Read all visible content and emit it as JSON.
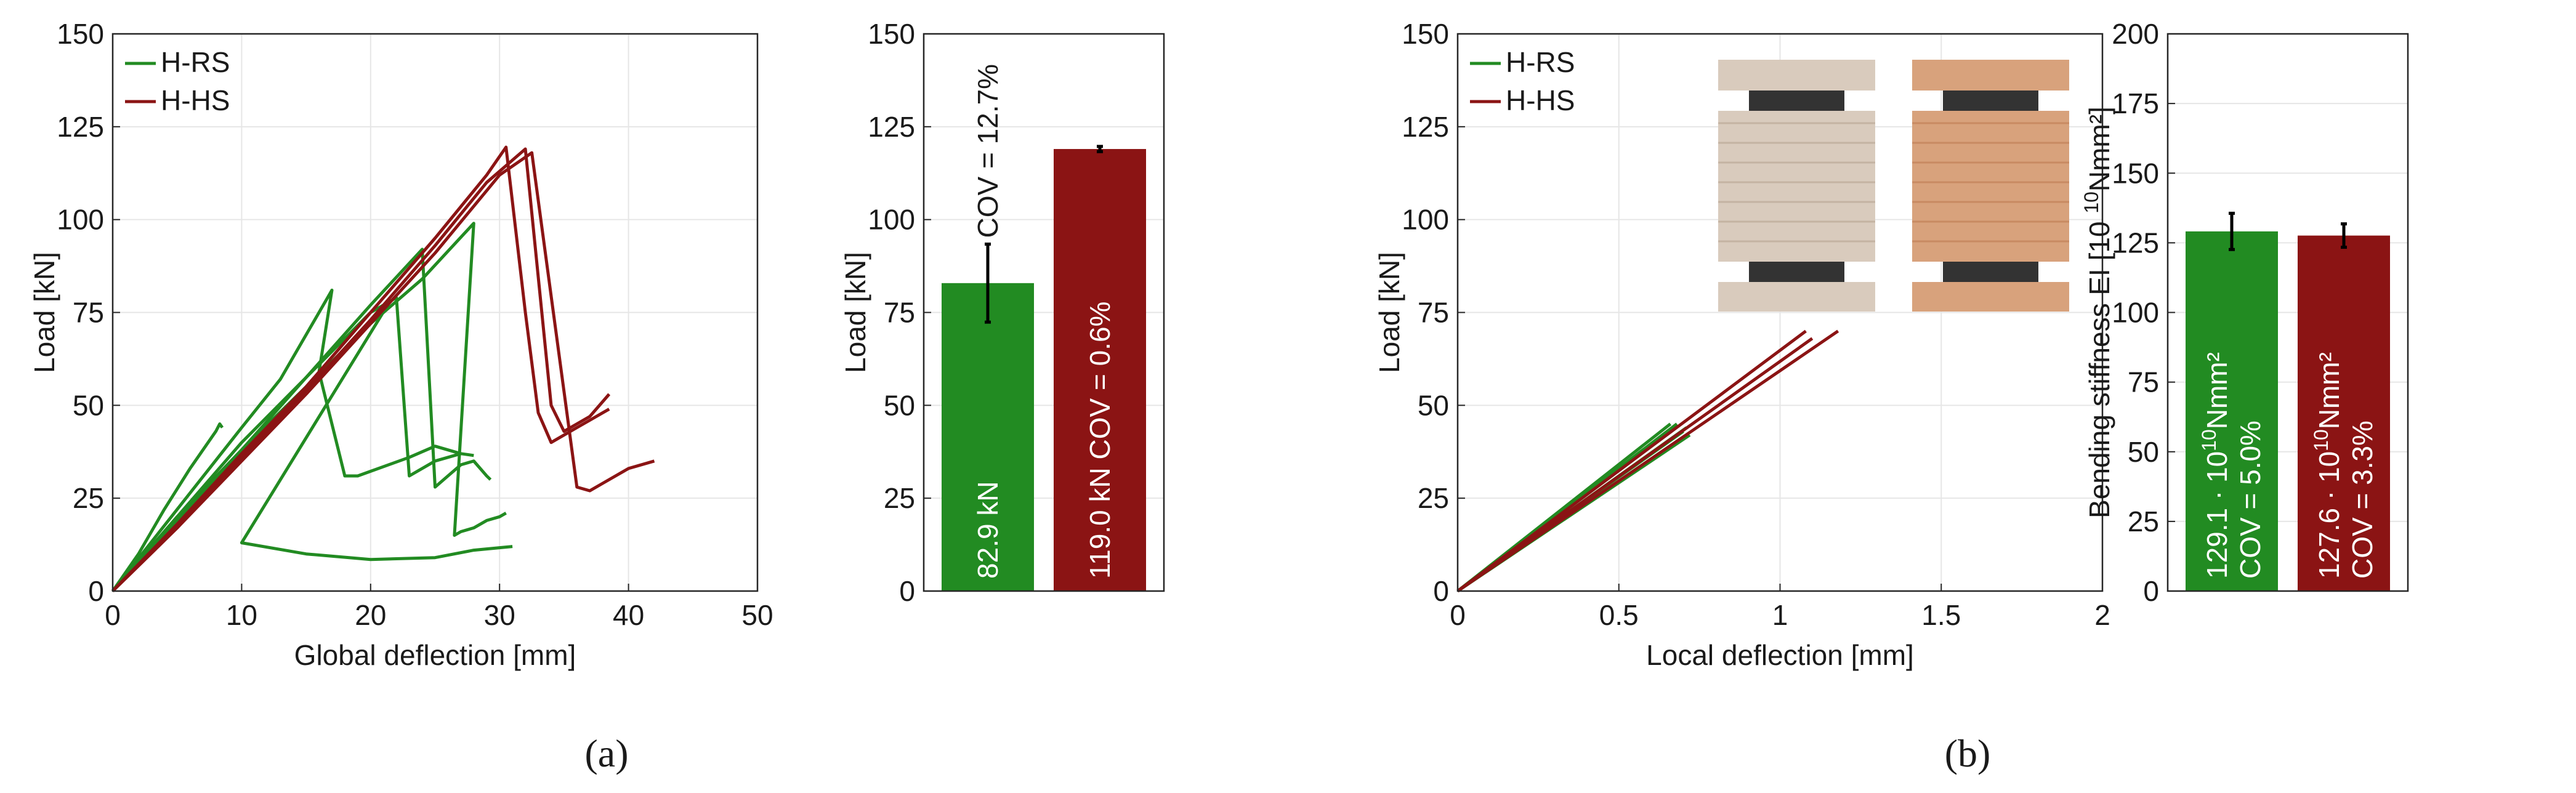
{
  "colors": {
    "green": "#228B22",
    "red": "#8B1414",
    "grid": "#e6e6e6",
    "axis": "#262626"
  },
  "panels": [
    {
      "label": "a",
      "label_text": "(a)"
    },
    {
      "label": "b",
      "label_text": "(b)"
    }
  ],
  "chart_data": [
    {
      "id": "a1",
      "type": "line",
      "xlabel": "Global deflection [mm]",
      "ylabel": "Load [kN]",
      "xlim": [
        0,
        50
      ],
      "ylim": [
        0,
        150
      ],
      "xticks": [
        0,
        10,
        20,
        30,
        40,
        50
      ],
      "yticks": [
        0,
        25,
        50,
        75,
        100,
        125,
        150
      ],
      "grid": true,
      "legend": {
        "placement": "top-left",
        "entries": [
          "H-RS",
          "H-HS"
        ]
      },
      "series": [
        {
          "name": "H-RS",
          "color": "green",
          "curves": [
            [
              [
                0,
                0
              ],
              [
                2,
                10
              ],
              [
                4,
                22
              ],
              [
                6,
                33
              ],
              [
                8,
                43
              ],
              [
                8.3,
                45
              ],
              [
                8.5,
                44
              ]
            ],
            [
              [
                0,
                0
              ],
              [
                5,
                22
              ],
              [
                10,
                44
              ],
              [
                13,
                57
              ],
              [
                17,
                81
              ],
              [
                16,
                59
              ],
              [
                18,
                31
              ],
              [
                19,
                31
              ],
              [
                23,
                36
              ],
              [
                25,
                39
              ],
              [
                27,
                37
              ]
            ],
            [
              [
                0,
                0
              ],
              [
                5,
                20
              ],
              [
                10,
                38
              ],
              [
                15,
                55
              ],
              [
                20,
                72
              ],
              [
                21.5,
                78
              ],
              [
                10,
                13
              ],
              [
                15,
                10
              ],
              [
                20,
                8.5
              ],
              [
                25,
                9
              ],
              [
                28,
                11
              ],
              [
                31,
                12
              ]
            ],
            [
              [
                0,
                0
              ],
              [
                10,
                40
              ],
              [
                20,
                75
              ],
              [
                22,
                79
              ],
              [
                23,
                31
              ],
              [
                25,
                35
              ],
              [
                27,
                37
              ],
              [
                28,
                36.5
              ]
            ],
            [
              [
                0,
                0
              ],
              [
                10,
                38
              ],
              [
                20,
                77
              ],
              [
                24,
                92
              ],
              [
                25,
                28
              ],
              [
                26,
                31
              ],
              [
                27,
                34
              ],
              [
                28,
                35
              ],
              [
                29,
                31
              ],
              [
                29.3,
                30
              ]
            ],
            [
              [
                0,
                0
              ],
              [
                10,
                37
              ],
              [
                20,
                72
              ],
              [
                24,
                84
              ],
              [
                28,
                99
              ],
              [
                26.5,
                15
              ],
              [
                27,
                16
              ],
              [
                28,
                17
              ],
              [
                29,
                19
              ],
              [
                30,
                20
              ],
              [
                30.5,
                21
              ]
            ]
          ]
        },
        {
          "name": "H-HS",
          "color": "red",
          "curves": [
            [
              [
                0,
                0
              ],
              [
                5,
                18
              ],
              [
                10,
                37
              ],
              [
                15,
                55
              ],
              [
                20,
                75
              ],
              [
                25,
                95
              ],
              [
                29,
                112
              ],
              [
                30.5,
                119.5
              ],
              [
                32,
                75
              ],
              [
                33,
                48
              ],
              [
                34,
                40
              ],
              [
                35,
                42
              ],
              [
                36,
                44
              ],
              [
                37,
                46
              ],
              [
                38,
                48
              ],
              [
                38.5,
                49
              ]
            ],
            [
              [
                0,
                0
              ],
              [
                5,
                17
              ],
              [
                10,
                36
              ],
              [
                15,
                54
              ],
              [
                20,
                73
              ],
              [
                25,
                93
              ],
              [
                29,
                110
              ],
              [
                31,
                116
              ],
              [
                32,
                119
              ],
              [
                34,
                50
              ],
              [
                35,
                43
              ],
              [
                36,
                45
              ],
              [
                37,
                47
              ],
              [
                38,
                51
              ],
              [
                38.5,
                53
              ]
            ],
            [
              [
                0,
                0
              ],
              [
                5,
                17
              ],
              [
                10,
                35
              ],
              [
                15,
                53
              ],
              [
                20,
                72
              ],
              [
                25,
                91
              ],
              [
                30,
                112
              ],
              [
                32.5,
                118
              ],
              [
                36,
                28
              ],
              [
                37,
                27
              ],
              [
                38,
                29
              ],
              [
                40,
                33
              ],
              [
                42,
                35
              ]
            ]
          ]
        }
      ]
    },
    {
      "id": "a2",
      "type": "bar",
      "ylabel": "Load [kN]",
      "ylim": [
        0,
        150
      ],
      "yticks": [
        0,
        25,
        50,
        75,
        100,
        125,
        150
      ],
      "grid": true,
      "bars": [
        {
          "color": "green",
          "value": 82.9,
          "err": 10.5,
          "label": "82.9 kN",
          "cov_label": "COV = 12.7%"
        },
        {
          "color": "red",
          "value": 119.0,
          "err": 0.7,
          "label": "119.0 kN COV = 0.6%"
        }
      ]
    },
    {
      "id": "b1",
      "type": "line",
      "xlabel": "Local deflection [mm]",
      "ylabel": "Load [kN]",
      "xlim": [
        0,
        2
      ],
      "ylim": [
        0,
        150
      ],
      "xticks": [
        0,
        0.5,
        1,
        1.5,
        2
      ],
      "yticks": [
        0,
        25,
        50,
        75,
        100,
        125,
        150
      ],
      "grid": true,
      "legend": {
        "placement": "top-left",
        "entries": [
          "H-RS",
          "H-HS"
        ]
      },
      "series": [
        {
          "name": "H-RS",
          "color": "green",
          "curves": [
            [
              [
                0,
                0
              ],
              [
                0.66,
                45
              ]
            ],
            [
              [
                0,
                0
              ],
              [
                0.68,
                45
              ]
            ],
            [
              [
                0,
                0
              ],
              [
                0.7,
                43
              ]
            ],
            [
              [
                0,
                0
              ],
              [
                0.71,
                44
              ]
            ],
            [
              [
                0,
                0
              ],
              [
                0.72,
                42
              ]
            ]
          ]
        },
        {
          "name": "H-HS",
          "color": "red",
          "curves": [
            [
              [
                0,
                0
              ],
              [
                1.08,
                70
              ]
            ],
            [
              [
                0,
                0
              ],
              [
                1.1,
                68
              ]
            ],
            [
              [
                0,
                0
              ],
              [
                1.18,
                70
              ]
            ]
          ]
        }
      ]
    },
    {
      "id": "b2",
      "type": "bar",
      "ylabel": "Bending stiffness EI [10 ",
      "ylabel_sup": "10",
      "ylabel_tail": "Nmm²]",
      "ylim": [
        0,
        200
      ],
      "yticks": [
        0,
        25,
        50,
        75,
        100,
        125,
        150,
        175,
        200
      ],
      "grid": true,
      "bars": [
        {
          "color": "green",
          "value": 129.1,
          "err": 6.5,
          "line1": "129.1 · 10",
          "sup": "10",
          "tail": "Nmm²",
          "line2": "COV = 5.0%"
        },
        {
          "color": "red",
          "value": 127.6,
          "err": 4.2,
          "line1": "127.6 · 10",
          "sup": "10",
          "tail": "Nmm²",
          "line2": "COV = 3.3%"
        }
      ]
    }
  ],
  "inset": {
    "description": "specimen cross-section photographs",
    "images": 2
  }
}
